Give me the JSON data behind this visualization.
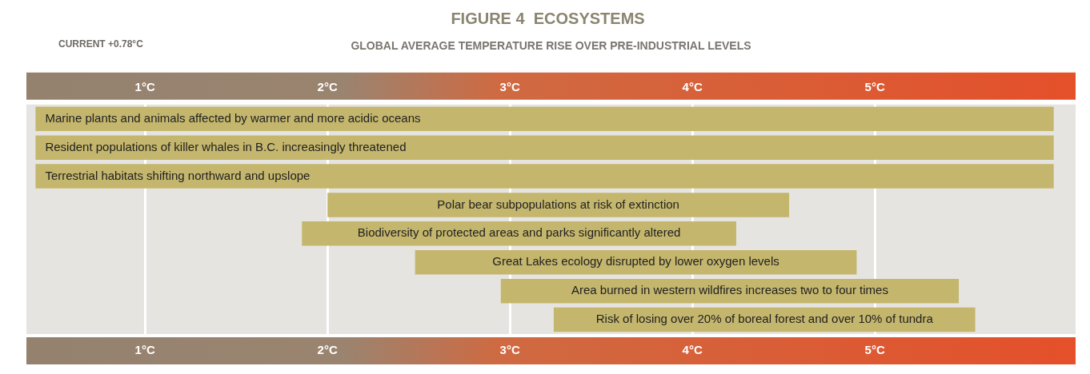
{
  "chart_data": {
    "type": "bar",
    "orientation": "horizontal",
    "title": "FIGURE 4  ECOSYSTEMS",
    "x2label": "GLOBAL AVERAGE TEMPERATURE RISE OVER PRE-INDUSTRIAL LEVELS",
    "categories": [
      "Marine plants and animals affected by warmer and more acidic oceans",
      "Resident populations of killer whales in B.C. increasingly threatened",
      "Terrestrial habitats shifting northward and upslope",
      "Polar bear subpopulations at risk of extinction",
      "Biodiversity of protected areas and parks significantly altered",
      "Great Lakes ecology disrupted by lower oxygen levels",
      "Area burned in western wildfires increases two to four times",
      "Risk of losing over 20% of boreal forest and over 10% of tundra"
    ],
    "base": [
      0.4,
      0.4,
      0.4,
      2.0,
      1.86,
      2.48,
      2.95,
      3.24
    ],
    "values": [
      5.58,
      5.58,
      5.58,
      2.53,
      2.38,
      2.42,
      2.51,
      2.31
    ],
    "color": "#c4b66c",
    "xlim": [
      0.35,
      6.1
    ],
    "xticks": [
      {
        "value": 1,
        "label": "1°C"
      },
      {
        "value": 2,
        "label": "2°C"
      },
      {
        "value": 3,
        "label": "3°C"
      },
      {
        "value": 4,
        "label": "4°C"
      },
      {
        "value": 5,
        "label": "5°C"
      }
    ],
    "x2lim": [
      0.35,
      6.1
    ],
    "x2ticks": [
      {
        "value": 1,
        "label": "1°C"
      },
      {
        "value": 2,
        "label": "2°C"
      },
      {
        "value": 3,
        "label": "3°C"
      },
      {
        "value": 4,
        "label": "4°C"
      },
      {
        "value": 5,
        "label": "5°C"
      }
    ],
    "annotations": [
      "CURRENT +0.78°C"
    ],
    "grid": "x",
    "tick_labels": "x"
  }
}
